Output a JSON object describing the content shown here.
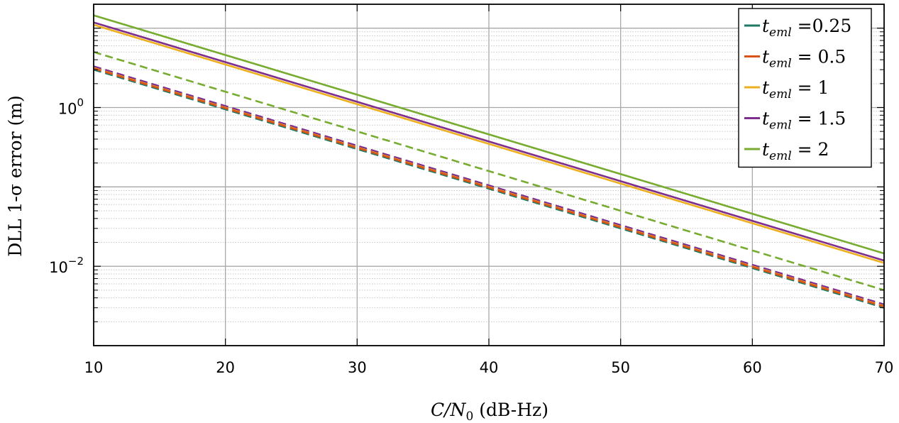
{
  "chart_data": {
    "type": "line",
    "title": "",
    "xlabel": "C/N0 (dB-Hz)",
    "xlabel_parts": {
      "main": "C/N",
      "sub": "0",
      "rest": " (dB-Hz)"
    },
    "ylabel": "DLL 1-σ error (m)",
    "xlim": [
      10,
      70
    ],
    "ylim": [
      0.001,
      20
    ],
    "yscale": "log",
    "grid": true,
    "x_ticks": [
      "10",
      "20",
      "30",
      "40",
      "50",
      "60",
      "70"
    ],
    "x_tick_values": [
      10,
      20,
      30,
      40,
      50,
      60,
      70
    ],
    "y_ticks": [
      {
        "value": 1,
        "base": "10",
        "exp": "0"
      },
      {
        "value": 0.01,
        "base": "10",
        "exp": "−2"
      }
    ],
    "legend_position": "top-right",
    "x": [
      10,
      70
    ],
    "series": [
      {
        "name": "t_eml =0.25",
        "var": "t",
        "sub": "eml",
        "text": " =0.25",
        "color": "#1f7a63",
        "style": "dashed",
        "values": [
          3.0,
          0.003
        ]
      },
      {
        "name": "t_eml = 0.5",
        "var": "t",
        "sub": "eml",
        "text": " = 0.5",
        "color": "#d95319",
        "style": "dashed",
        "values": [
          3.1,
          0.0031
        ]
      },
      {
        "name": "t_eml = 1",
        "var": "t",
        "sub": "eml",
        "text": " = 1",
        "color": "#edb120",
        "style": "solid",
        "values": [
          11.0,
          0.011
        ]
      },
      {
        "name": "t_eml = 1.5",
        "var": "t",
        "sub": "eml",
        "text": " = 1.5",
        "color": "#7e2f8e",
        "style": "solid",
        "values": [
          11.8,
          0.0118
        ]
      },
      {
        "name": "t_eml = 2",
        "var": "t",
        "sub": "eml",
        "text": " = 2",
        "color": "#77ac30",
        "style": "solid",
        "values": [
          14.5,
          0.0145
        ]
      }
    ],
    "extra_series": [
      {
        "name": "t_eml = 0.5 (dashed)",
        "color": "#d95319",
        "style": "dashed",
        "values": [
          3.2,
          0.0032
        ]
      },
      {
        "name": "t_eml = 1.5 (dashed)",
        "color": "#7e2f8e",
        "style": "dashed",
        "values": [
          3.3,
          0.0033
        ]
      },
      {
        "name": "t_eml = 2 (dashed)",
        "color": "#77ac30",
        "style": "dashed",
        "values": [
          5.0,
          0.005
        ]
      },
      {
        "name": "t_eml = 1 (dashed)",
        "color": "#edb120",
        "style": "dashed",
        "values": [
          3.15,
          0.00315
        ]
      }
    ]
  }
}
